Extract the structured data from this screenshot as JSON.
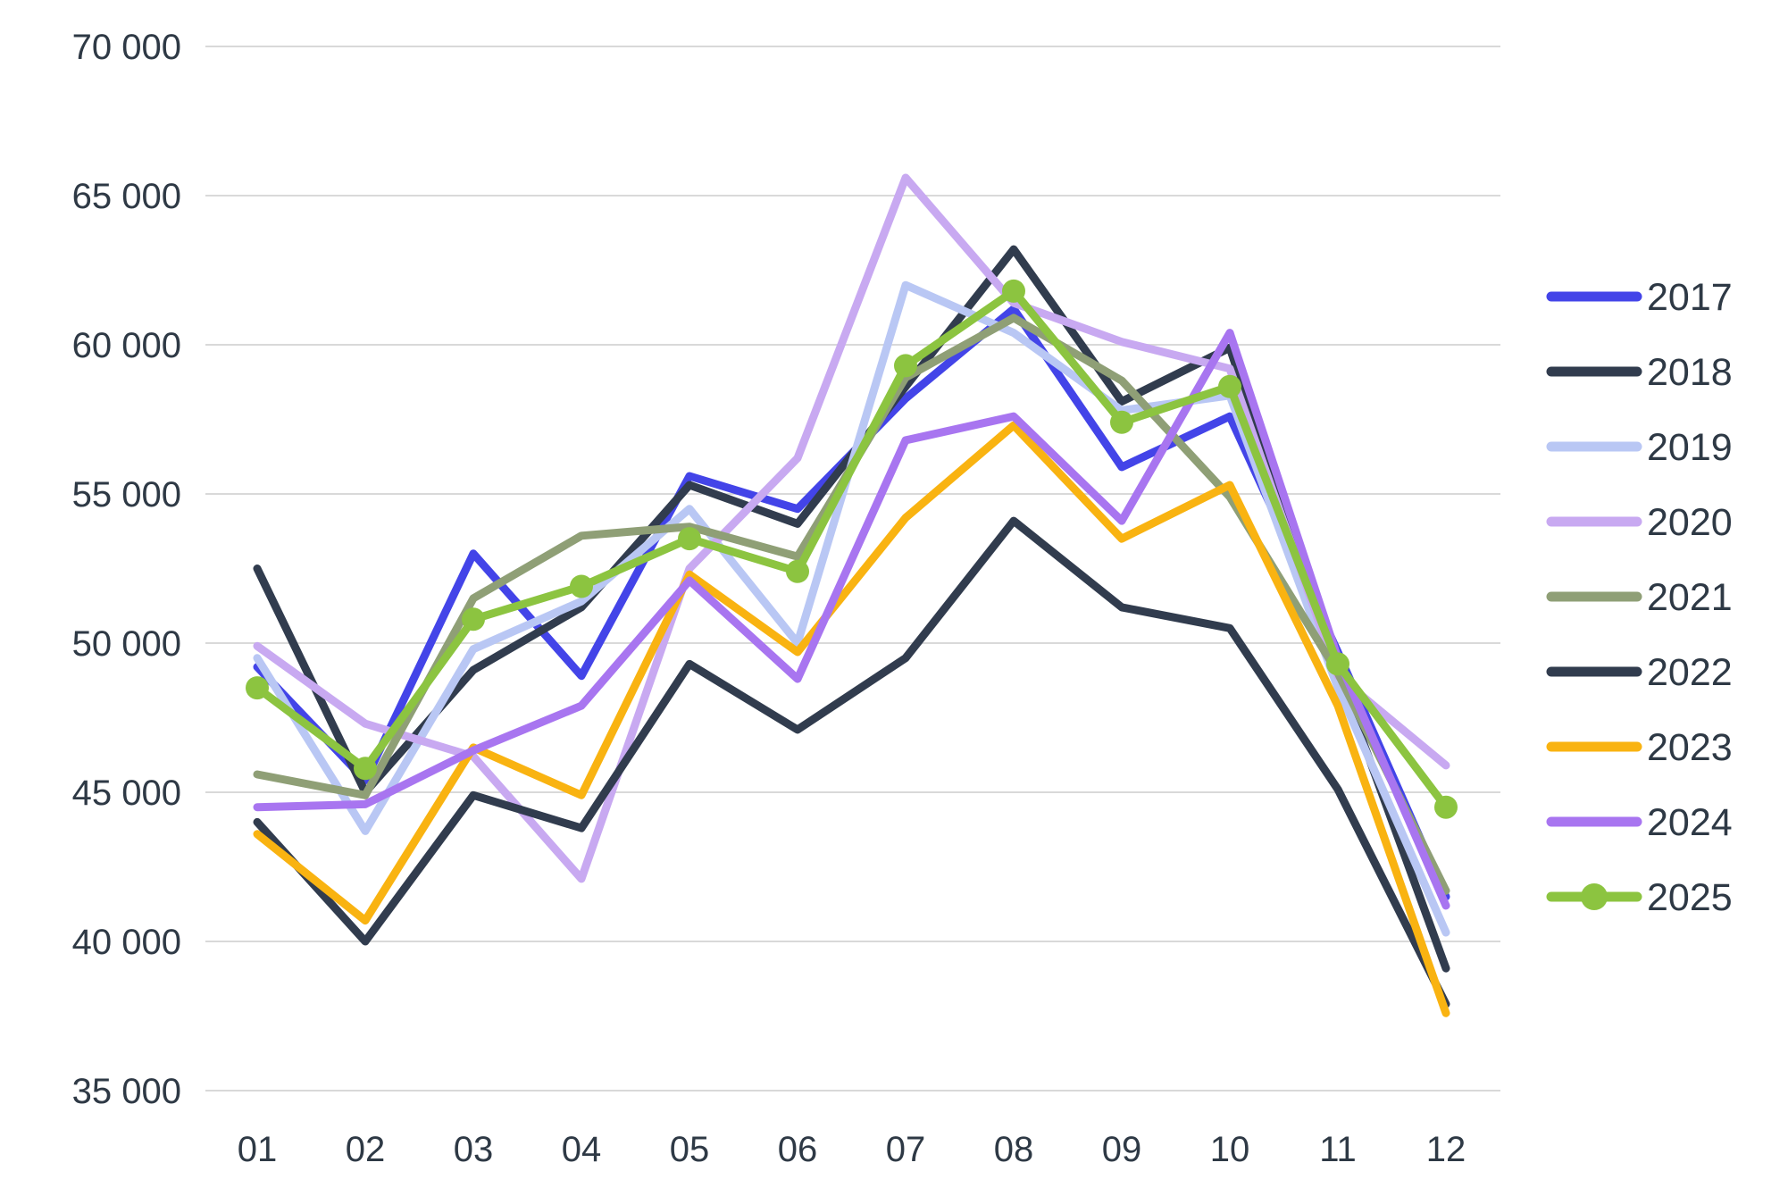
{
  "chart_data": {
    "type": "line",
    "title": "",
    "xlabel": "",
    "ylabel": "",
    "grid": true,
    "legend_position": "right",
    "categories": [
      "01",
      "02",
      "03",
      "04",
      "05",
      "06",
      "07",
      "08",
      "09",
      "10",
      "11",
      "12"
    ],
    "y_axis": {
      "min": 35000,
      "max": 70000,
      "step": 5000,
      "tick_labels": [
        "70 000",
        "65 000",
        "60 000",
        "55 000",
        "50 000",
        "45 000",
        "40 000",
        "35 000"
      ]
    },
    "series": [
      {
        "name": "2017",
        "color": "#4344e8",
        "marker": false,
        "values": [
          49200,
          45400,
          53000,
          48900,
          55600,
          54500,
          58200,
          61200,
          55900,
          57600,
          49700,
          41500
        ]
      },
      {
        "name": "2018",
        "color": "#313c4e",
        "marker": false,
        "values": [
          52500,
          45000,
          49100,
          51200,
          55300,
          54000,
          58600,
          63200,
          58100,
          59900,
          49000,
          39100
        ]
      },
      {
        "name": "2019",
        "color": "#b9c7f4",
        "marker": false,
        "values": [
          49500,
          43700,
          49800,
          51400,
          54500,
          50000,
          62000,
          60400,
          57800,
          58300,
          48500,
          40300
        ]
      },
      {
        "name": "2020",
        "color": "#c8a9f1",
        "marker": false,
        "values": [
          49900,
          47300,
          46200,
          42100,
          52500,
          56200,
          65600,
          61400,
          60100,
          59200,
          48900,
          45900
        ]
      },
      {
        "name": "2021",
        "color": "#8f9f76",
        "marker": false,
        "values": [
          45600,
          44900,
          51500,
          53600,
          53900,
          52900,
          58900,
          60900,
          58800,
          54900,
          49000,
          41700
        ]
      },
      {
        "name": "2022",
        "color": "#313c4e",
        "marker": false,
        "values": [
          44000,
          40000,
          44900,
          43800,
          49300,
          47100,
          49500,
          54100,
          51200,
          50500,
          45100,
          37900
        ]
      },
      {
        "name": "2023",
        "color": "#f9b311",
        "marker": false,
        "values": [
          43600,
          40700,
          46500,
          44900,
          52300,
          49700,
          54200,
          57300,
          53500,
          55300,
          47900,
          37600
        ]
      },
      {
        "name": "2024",
        "color": "#a875f0",
        "marker": false,
        "values": [
          44500,
          44600,
          46400,
          47900,
          52100,
          48800,
          56800,
          57600,
          54100,
          60400,
          49500,
          41200
        ]
      },
      {
        "name": "2025",
        "color": "#8cc440",
        "marker": true,
        "values": [
          48500,
          45800,
          50800,
          51900,
          53500,
          52400,
          59300,
          61800,
          57400,
          58600,
          49300,
          44500
        ]
      }
    ],
    "colors": {
      "gridline": "#d9d9d9",
      "text": "#2e3945",
      "background": "#ffffff"
    }
  }
}
